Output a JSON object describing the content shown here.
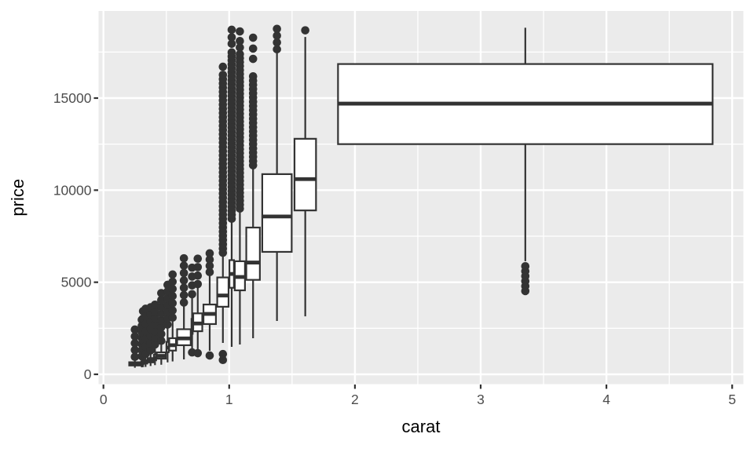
{
  "figure": {
    "background": "#ffffff"
  },
  "chart_data": {
    "type": "boxplot",
    "title": "",
    "xlabel": "carat",
    "ylabel": "price",
    "x_ticks": [
      0,
      1,
      2,
      3,
      4,
      5
    ],
    "x_minor_ticks": [
      0.5,
      1.5,
      2.5,
      3.5,
      4.5
    ],
    "y_ticks": [
      0,
      5000,
      10000,
      15000
    ],
    "y_minor_ticks": [
      2500,
      7500,
      12500,
      17500
    ],
    "x_range": [
      -0.04,
      5.09
    ],
    "y_range": [
      -560,
      19760
    ],
    "grid": true,
    "legend": "none",
    "colors": {
      "panel_bg": "#ebebeb",
      "gridline": "#ffffff",
      "box_stroke": "#333333",
      "box_fill": "#ffffff",
      "outlier": "#333333",
      "tick_mark": "#333333",
      "tick_label": "#4d4d4d",
      "axis_title": "#000000"
    },
    "groups": [
      {
        "carat": 0.25,
        "width": 0.09,
        "lower": 357,
        "q1": 480,
        "median": 558,
        "q3": 655,
        "upper": 880,
        "outlier_runs": [
          [
            950,
            2430,
            370
          ]
        ],
        "outlier_points": []
      },
      {
        "carat": 0.305,
        "width": 0.009,
        "lower": 380,
        "q1": 544,
        "median": 605,
        "q3": 698,
        "upper": 925,
        "outlier_runs": [
          [
            980,
            3280,
            330
          ]
        ],
        "outlier_points": []
      },
      {
        "carat": 0.315,
        "width": 0.009,
        "lower": 394,
        "q1": 565,
        "median": 625,
        "q3": 717,
        "upper": 940,
        "outlier_runs": [
          [
            1030,
            3430,
            400
          ]
        ],
        "outlier_points": []
      },
      {
        "carat": 0.335,
        "width": 0.027,
        "lower": 402,
        "q1": 584,
        "median": 660,
        "q3": 768,
        "upper": 1040,
        "outlier_runs": [
          [
            1100,
            3560,
            410
          ]
        ],
        "outlier_points": []
      },
      {
        "carat": 0.375,
        "width": 0.045,
        "lower": 452,
        "q1": 650,
        "median": 740,
        "q3": 880,
        "upper": 1220,
        "outlier_runs": [
          [
            1300,
            3830,
            390
          ]
        ],
        "outlier_points": []
      },
      {
        "carat": 0.41,
        "width": 0.018,
        "lower": 500,
        "q1": 760,
        "median": 890,
        "q3": 1060,
        "upper": 1500,
        "outlier_runs": [
          [
            1620,
            4130,
            360
          ]
        ],
        "outlier_points": []
      },
      {
        "carat": 0.46,
        "width": 0.072,
        "lower": 520,
        "q1": 850,
        "median": 1000,
        "q3": 1190,
        "upper": 1700,
        "outlier_runs": [
          [
            1820,
            4560,
            370
          ]
        ],
        "outlier_points": []
      },
      {
        "carat": 0.51,
        "width": 0.018,
        "lower": 650,
        "q1": 1200,
        "median": 1450,
        "q3": 1760,
        "upper": 2590,
        "outlier_runs": [
          [
            2700,
            5200,
            360
          ]
        ],
        "outlier_points": []
      },
      {
        "carat": 0.55,
        "width": 0.054,
        "lower": 700,
        "q1": 1290,
        "median": 1580,
        "q3": 1960,
        "upper": 2960,
        "outlier_runs": [
          [
            3080,
            5620,
            390
          ]
        ],
        "outlier_points": []
      },
      {
        "carat": 0.64,
        "width": 0.108,
        "lower": 810,
        "q1": 1580,
        "median": 1950,
        "q3": 2450,
        "upper": 3750,
        "outlier_runs": [
          [
            3900,
            6300,
            400
          ]
        ],
        "outlier_points": []
      },
      {
        "carat": 0.705,
        "width": 0.009,
        "lower": 1400,
        "q1": 2200,
        "median": 2580,
        "q3": 3010,
        "upper": 4220,
        "outlier_runs": [
          [
            4350,
            5800,
            480
          ]
        ],
        "outlier_points": [
          1190
        ]
      },
      {
        "carat": 0.75,
        "width": 0.072,
        "lower": 1365,
        "q1": 2340,
        "median": 2760,
        "q3": 3310,
        "upper": 4760,
        "outlier_runs": [
          [
            4900,
            6300,
            460
          ]
        ],
        "outlier_points": [
          1150
        ]
      },
      {
        "carat": 0.845,
        "width": 0.099,
        "lower": 1280,
        "q1": 2730,
        "median": 3280,
        "q3": 3790,
        "upper": 5380,
        "outlier_runs": [
          [
            5550,
            6900,
            340
          ]
        ],
        "outlier_points": [
          1020
        ]
      },
      {
        "carat": 0.95,
        "width": 0.09,
        "lower": 1705,
        "q1": 3670,
        "median": 4280,
        "q3": 5260,
        "upper": 6440,
        "outlier_runs": [
          [
            6600,
            16350,
            230
          ]
        ],
        "outlier_points": [
          16700,
          1100,
          780
        ]
      },
      {
        "carat": 1.02,
        "width": 0.036,
        "lower": 1490,
        "q1": 4700,
        "median": 5450,
        "q3": 6200,
        "upper": 8270,
        "outlier_runs": [
          [
            8450,
            17600,
            215
          ]
        ],
        "outlier_points": [
          17950,
          18300,
          18710
        ]
      },
      {
        "carat": 1.085,
        "width": 0.081,
        "lower": 1620,
        "q1": 4560,
        "median": 5285,
        "q3": 6140,
        "upper": 8820,
        "outlier_runs": [
          [
            9000,
            17400,
            215
          ]
        ],
        "outlier_points": [
          17750,
          18100,
          18620
        ]
      },
      {
        "carat": 1.19,
        "width": 0.108,
        "lower": 1960,
        "q1": 5130,
        "median": 6070,
        "q3": 7970,
        "upper": 11170,
        "outlier_runs": [
          [
            11350,
            16400,
            230
          ]
        ],
        "outlier_points": [
          17130,
          17690,
          18280
        ]
      },
      {
        "carat": 1.38,
        "width": 0.234,
        "lower": 2900,
        "q1": 6650,
        "median": 8570,
        "q3": 10870,
        "upper": 17475,
        "outlier_runs": [
          [
            17650,
            18760,
            370
          ]
        ],
        "outlier_points": []
      },
      {
        "carat": 1.605,
        "width": 0.171,
        "lower": 3150,
        "q1": 8900,
        "median": 10600,
        "q3": 12790,
        "upper": 18320,
        "outlier_runs": [],
        "outlier_points": [
          18680
        ]
      },
      {
        "carat": 3.355,
        "width": 2.979,
        "lower": 6140,
        "q1": 12500,
        "median": 14700,
        "q3": 16850,
        "upper": 18820,
        "outlier_runs": [
          [
            4520,
            5880,
            270
          ]
        ],
        "outlier_points": []
      }
    ]
  }
}
